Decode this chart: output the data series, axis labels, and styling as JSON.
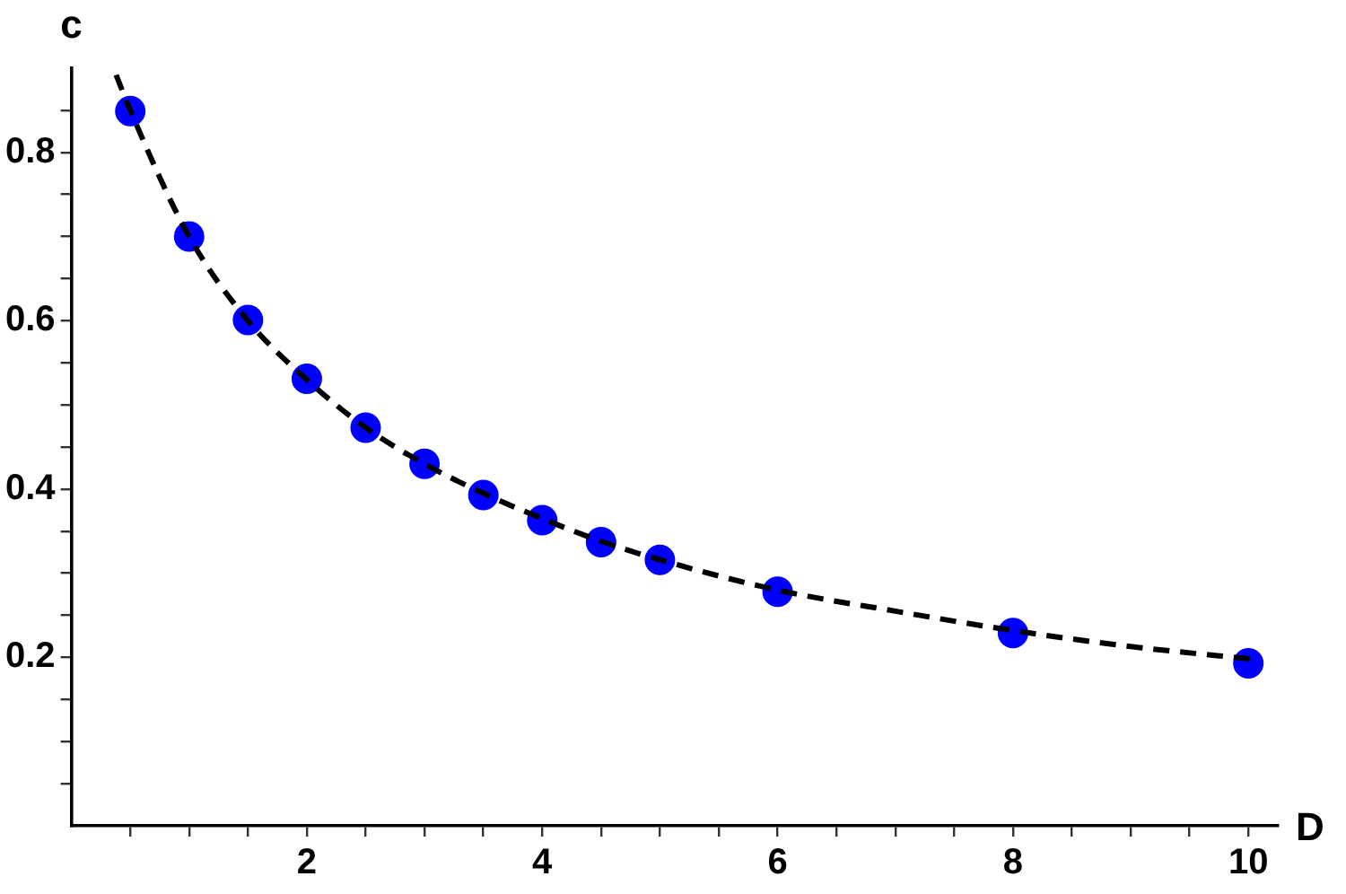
{
  "chart_data": {
    "type": "scatter",
    "xlabel": "D",
    "ylabel": "c",
    "xlim": [
      0,
      10.25
    ],
    "ylim": [
      0,
      0.9
    ],
    "xticks": [
      {
        "value": 0.5,
        "label": null
      },
      {
        "value": 1,
        "label": null
      },
      {
        "value": 1.5,
        "label": null
      },
      2,
      {
        "value": 2.5,
        "label": null
      },
      {
        "value": 3,
        "label": null
      },
      {
        "value": 3.5,
        "label": null
      },
      4,
      {
        "value": 4.5,
        "label": null
      },
      {
        "value": 5,
        "label": null
      },
      {
        "value": 5.5,
        "label": null
      },
      6,
      {
        "value": 6.5,
        "label": null
      },
      {
        "value": 7,
        "label": null
      },
      {
        "value": 7.5,
        "label": null
      },
      8,
      {
        "value": 8.5,
        "label": null
      },
      {
        "value": 9,
        "label": null
      },
      {
        "value": 9.5,
        "label": null
      },
      10
    ],
    "yticks": [
      {
        "value": 0.05,
        "label": null
      },
      {
        "value": 0.1,
        "label": null
      },
      {
        "value": 0.15,
        "label": null
      },
      0.2,
      {
        "value": 0.25,
        "label": null
      },
      {
        "value": 0.3,
        "label": null
      },
      {
        "value": 0.35,
        "label": null
      },
      0.4,
      {
        "value": 0.45,
        "label": null
      },
      {
        "value": 0.5,
        "label": null
      },
      {
        "value": 0.55,
        "label": null
      },
      0.6,
      {
        "value": 0.65,
        "label": null
      },
      {
        "value": 0.7,
        "label": null
      },
      {
        "value": 0.75,
        "label": null
      },
      0.8,
      {
        "value": 0.85,
        "label": null
      }
    ],
    "series": [
      {
        "type": "line",
        "color": "#000000",
        "line_style": "dashed",
        "marker": "none",
        "x": [
          0.38,
          0.5,
          1,
          1.5,
          2,
          2.5,
          3,
          3.5,
          4,
          4.5,
          5,
          6,
          7,
          8,
          9,
          10.1
        ],
        "values": [
          0.892,
          0.85,
          0.7,
          0.6,
          0.53,
          0.473,
          0.43,
          0.395,
          0.365,
          0.338,
          0.316,
          0.28,
          0.255,
          0.232,
          0.213,
          0.197
        ]
      },
      {
        "color": "#0000ff",
        "marker": "circle",
        "x": [
          0.5,
          1,
          1.5,
          2,
          2.5,
          3,
          3.5,
          4,
          4.5,
          5,
          6,
          8,
          10
        ],
        "values": [
          0.849,
          0.7,
          0.601,
          0.531,
          0.473,
          0.43,
          0.393,
          0.363,
          0.337,
          0.316,
          0.278,
          0.229,
          0.193
        ]
      }
    ]
  }
}
